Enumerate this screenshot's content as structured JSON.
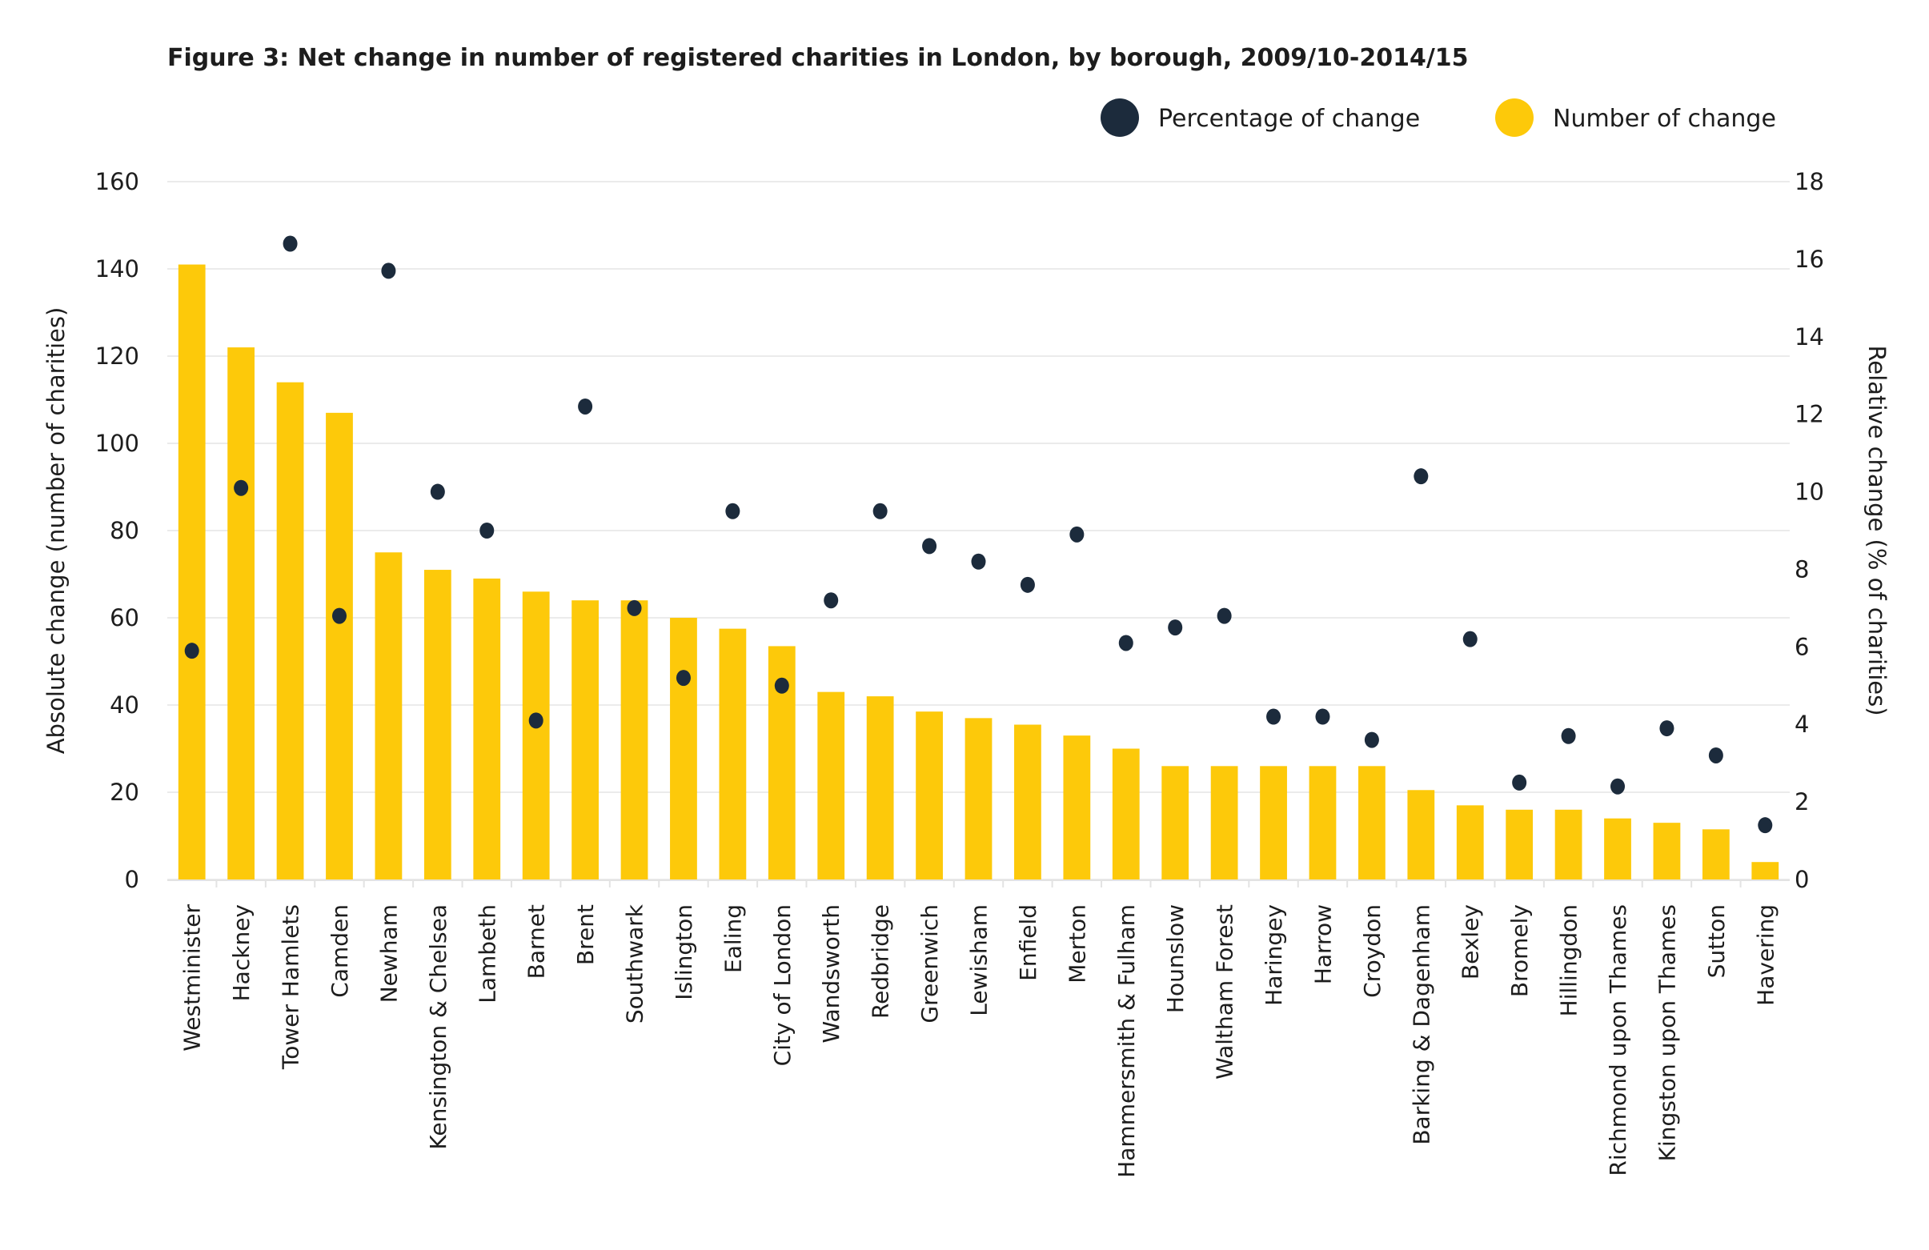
{
  "chart_data": {
    "type": "bar",
    "title": "Figure 3: Net change in number of registered charities in London, by borough, 2009/10-2014/15",
    "ylabel": "Absolute change (number of charities)",
    "y2label": "Relative change (% of charities)",
    "ylim": [
      0,
      160
    ],
    "y2lim": [
      0,
      18
    ],
    "yticks": [
      0,
      20,
      40,
      60,
      80,
      100,
      120,
      140,
      160
    ],
    "y2ticks": [
      0,
      2,
      4,
      6,
      8,
      10,
      12,
      14,
      16,
      18
    ],
    "grid": true,
    "legend_placement": "top-right",
    "categories": [
      "Westminister",
      "Hackney",
      "Tower Hamlets",
      "Camden",
      "Newham",
      "Kensington & Chelsea",
      "Lambeth",
      "Barnet",
      "Brent",
      "Southwark",
      "Islington",
      "Ealing",
      "City of London",
      "Wandsworth",
      "Redbridge",
      "Greenwich",
      "Lewisham",
      "Enfield",
      "Merton",
      "Hammersmith & Fulham",
      "Hounslow",
      "Waltham Forest",
      "Haringey",
      "Harrow",
      "Croydon",
      "Barking & Dagenham",
      "Bexley",
      "Bromely",
      "Hillingdon",
      "Richmond upon Thames",
      "Kingston upon Thames",
      "Sutton",
      "Havering"
    ],
    "series": [
      {
        "name": "Number of change",
        "type": "bar",
        "axis": "left",
        "color": "#FDC90A",
        "values": [
          141,
          122,
          114,
          107,
          75,
          71,
          69,
          66,
          64,
          64,
          60,
          57.5,
          53.5,
          43,
          42,
          38.5,
          37,
          35.5,
          33,
          30,
          26,
          26,
          26,
          26,
          26,
          20.5,
          17,
          16,
          16,
          14,
          13,
          11.5,
          4
        ]
      },
      {
        "name": "Percentage of change",
        "type": "scatter",
        "axis": "right",
        "color": "#1C2B3C",
        "values": [
          5.9,
          10.1,
          16.4,
          6.8,
          15.7,
          10.0,
          9.0,
          4.1,
          12.2,
          7.0,
          5.2,
          9.5,
          5.0,
          7.2,
          9.5,
          8.6,
          8.2,
          7.6,
          8.9,
          6.1,
          6.5,
          6.8,
          4.2,
          4.2,
          3.6,
          10.4,
          6.2,
          2.5,
          3.7,
          2.4,
          3.9,
          3.2,
          1.4
        ]
      }
    ]
  }
}
